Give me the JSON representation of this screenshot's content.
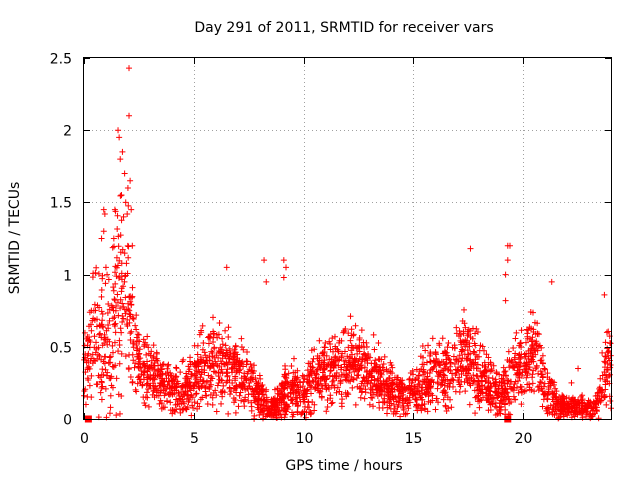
{
  "chart_data": {
    "type": "scatter",
    "title": "Day 291 of 2011, SRMTID for receiver vars",
    "xlabel": "GPS time / hours",
    "ylabel": "SRMTID / TECUs",
    "xlim": [
      0,
      24
    ],
    "ylim": [
      0,
      2.5
    ],
    "x_ticks": [
      0,
      5,
      10,
      15,
      20
    ],
    "x_tick_labels": [
      "0",
      "5",
      "10",
      "15",
      "20"
    ],
    "y_ticks": [
      0,
      0.5,
      1,
      1.5,
      2,
      2.5
    ],
    "y_tick_labels": [
      "0",
      "0.5",
      "1",
      "1.5",
      "2",
      "2.5"
    ],
    "grid": true,
    "marker": "plus",
    "color": "#ff0000",
    "square_markers": [
      {
        "x": 0.2,
        "y": 0.0
      },
      {
        "x": 19.3,
        "y": 0.0
      }
    ],
    "envelope": {
      "x": [
        0.0,
        0.3,
        0.5,
        0.8,
        1.0,
        1.3,
        1.5,
        1.8,
        2.0,
        2.2,
        2.5,
        2.8,
        3.2,
        3.6,
        4.0,
        4.5,
        5.0,
        5.5,
        6.0,
        6.5,
        7.0,
        7.5,
        8.0,
        8.3,
        8.6,
        9.0,
        9.5,
        10.0,
        10.5,
        11.0,
        11.5,
        12.0,
        12.5,
        13.0,
        13.5,
        14.0,
        14.5,
        15.0,
        15.5,
        16.0,
        16.5,
        17.0,
        17.5,
        18.0,
        18.5,
        19.0,
        19.3,
        19.6,
        20.0,
        20.5,
        21.0,
        21.5,
        22.0,
        22.5,
        23.0,
        23.4,
        23.7,
        24.0
      ],
      "center": [
        0.3,
        0.5,
        0.6,
        0.55,
        0.5,
        0.65,
        0.8,
        0.9,
        0.85,
        0.6,
        0.4,
        0.35,
        0.3,
        0.25,
        0.2,
        0.2,
        0.25,
        0.35,
        0.4,
        0.35,
        0.3,
        0.25,
        0.15,
        0.1,
        0.08,
        0.15,
        0.2,
        0.15,
        0.3,
        0.35,
        0.3,
        0.35,
        0.4,
        0.3,
        0.25,
        0.2,
        0.15,
        0.2,
        0.25,
        0.3,
        0.3,
        0.4,
        0.45,
        0.3,
        0.2,
        0.15,
        0.25,
        0.3,
        0.4,
        0.45,
        0.2,
        0.1,
        0.08,
        0.08,
        0.07,
        0.1,
        0.3,
        0.4
      ],
      "spread": [
        0.25,
        0.4,
        0.45,
        0.4,
        0.4,
        0.55,
        0.6,
        0.6,
        0.55,
        0.4,
        0.25,
        0.2,
        0.18,
        0.15,
        0.15,
        0.15,
        0.18,
        0.25,
        0.25,
        0.25,
        0.2,
        0.2,
        0.12,
        0.1,
        0.08,
        0.15,
        0.15,
        0.12,
        0.2,
        0.22,
        0.2,
        0.22,
        0.22,
        0.2,
        0.18,
        0.15,
        0.12,
        0.15,
        0.18,
        0.2,
        0.2,
        0.25,
        0.25,
        0.2,
        0.15,
        0.12,
        0.2,
        0.2,
        0.22,
        0.25,
        0.15,
        0.08,
        0.06,
        0.06,
        0.06,
        0.08,
        0.25,
        0.25
      ]
    },
    "extremes": [
      {
        "x": 2.05,
        "y": 2.43
      },
      {
        "x": 2.05,
        "y": 2.1
      },
      {
        "x": 1.55,
        "y": 2.0
      },
      {
        "x": 1.6,
        "y": 1.95
      },
      {
        "x": 1.75,
        "y": 1.85
      },
      {
        "x": 1.65,
        "y": 1.8
      },
      {
        "x": 1.85,
        "y": 1.7
      },
      {
        "x": 2.1,
        "y": 1.65
      },
      {
        "x": 2.0,
        "y": 1.6
      },
      {
        "x": 1.7,
        "y": 1.55
      },
      {
        "x": 1.9,
        "y": 1.5
      },
      {
        "x": 2.15,
        "y": 1.45
      },
      {
        "x": 0.9,
        "y": 1.45
      },
      {
        "x": 0.95,
        "y": 1.42
      },
      {
        "x": 1.8,
        "y": 1.4
      },
      {
        "x": 0.9,
        "y": 1.3
      },
      {
        "x": 2.2,
        "y": 1.2
      },
      {
        "x": 0.8,
        "y": 1.25
      },
      {
        "x": 1.0,
        "y": 1.05
      },
      {
        "x": 1.05,
        "y": 1.0
      },
      {
        "x": 17.6,
        "y": 1.18
      },
      {
        "x": 19.3,
        "y": 1.2
      },
      {
        "x": 19.4,
        "y": 1.2
      },
      {
        "x": 19.3,
        "y": 1.1
      },
      {
        "x": 19.2,
        "y": 1.0
      },
      {
        "x": 19.2,
        "y": 0.82
      },
      {
        "x": 8.2,
        "y": 1.1
      },
      {
        "x": 9.1,
        "y": 1.1
      },
      {
        "x": 9.2,
        "y": 1.05
      },
      {
        "x": 9.1,
        "y": 0.98
      },
      {
        "x": 6.5,
        "y": 1.05
      },
      {
        "x": 8.3,
        "y": 0.95
      },
      {
        "x": 23.7,
        "y": 0.86
      },
      {
        "x": 21.3,
        "y": 0.95
      },
      {
        "x": 22.5,
        "y": 0.35
      },
      {
        "x": 22.2,
        "y": 0.25
      }
    ],
    "n_points": 2800,
    "seed": 291
  }
}
